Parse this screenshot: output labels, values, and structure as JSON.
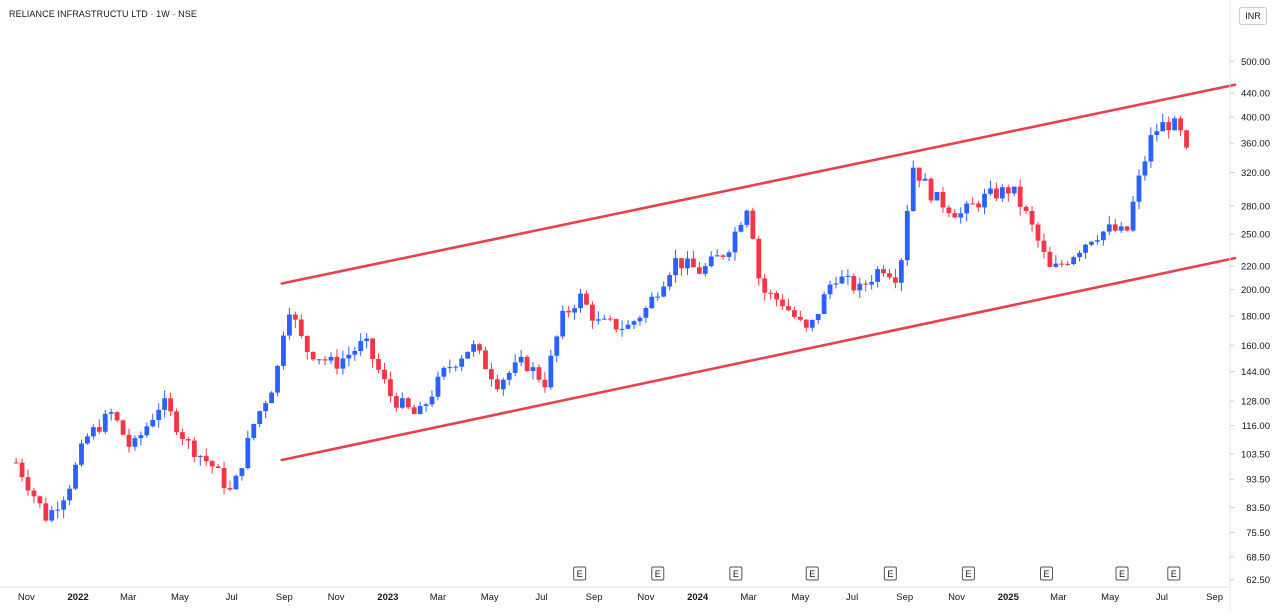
{
  "title": "RELIANCE INFRASTRUCTU LTD · 1W · NSE",
  "currency": "INR",
  "colors": {
    "up": "#2962ff",
    "down": "#f23645",
    "channel": "#e8414e"
  },
  "chart_data": {
    "type": "candlestick",
    "y_scale": "log",
    "ylim": [
      59,
      560
    ],
    "y_ticks": [
      "500.00",
      "440.00",
      "400.00",
      "360.00",
      "320.00",
      "280.00",
      "250.00",
      "220.00",
      "200.00",
      "180.00",
      "160.00",
      "144.00",
      "128.00",
      "116.00",
      "103.50",
      "93.50",
      "83.50",
      "75.50",
      "68.50",
      "62.50"
    ],
    "x_ticks": [
      "Nov",
      "2022",
      "Mar",
      "May",
      "Jul",
      "Sep",
      "Nov",
      "2023",
      "Mar",
      "May",
      "Jul",
      "Sep",
      "Nov",
      "2024",
      "Mar",
      "May",
      "Jul",
      "Sep",
      "Nov",
      "2025",
      "Mar",
      "May",
      "Jul",
      "Sep"
    ],
    "x_year_ticks": [
      "2022",
      "2023",
      "2024",
      "2025"
    ],
    "earnings_label": "E",
    "earnings_dates": [
      "2023-08",
      "2023-11",
      "2024-02",
      "2024-05",
      "2024-08",
      "2024-11",
      "2025-02",
      "2025-05",
      "2025-07"
    ],
    "channel": {
      "upper": {
        "from": [
          "2022-08-29",
          205
        ],
        "to": [
          "2025-09-25",
          455
        ]
      },
      "lower": {
        "from": [
          "2022-08-29",
          101
        ],
        "to": [
          "2025-09-25",
          227
        ]
      }
    },
    "anchors": [
      [
        "2021-10-20",
        100
      ],
      [
        "2021-11-25",
        80
      ],
      [
        "2021-12-20",
        90
      ],
      [
        "2022-01-10",
        110
      ],
      [
        "2022-02-10",
        122
      ],
      [
        "2022-03-05",
        105
      ],
      [
        "2022-04-10",
        128
      ],
      [
        "2022-05-10",
        108
      ],
      [
        "2022-06-10",
        98
      ],
      [
        "2022-07-01",
        88
      ],
      [
        "2022-07-28",
        118
      ],
      [
        "2022-08-22",
        140
      ],
      [
        "2022-09-05",
        190
      ],
      [
        "2022-09-25",
        158
      ],
      [
        "2022-10-30",
        148
      ],
      [
        "2022-12-05",
        162
      ],
      [
        "2023-01-05",
        130
      ],
      [
        "2023-02-05",
        120
      ],
      [
        "2023-03-10",
        145
      ],
      [
        "2023-04-10",
        160
      ],
      [
        "2023-05-10",
        138
      ],
      [
        "2023-06-10",
        150
      ],
      [
        "2023-07-05",
        138
      ],
      [
        "2023-07-25",
        178
      ],
      [
        "2023-08-15",
        195
      ],
      [
        "2023-09-05",
        175
      ],
      [
        "2023-10-10",
        172
      ],
      [
        "2023-11-01",
        185
      ],
      [
        "2023-12-05",
        225
      ],
      [
        "2024-01-05",
        215
      ],
      [
        "2024-02-05",
        235
      ],
      [
        "2024-03-01",
        285
      ],
      [
        "2024-03-15",
        200
      ],
      [
        "2024-04-10",
        190
      ],
      [
        "2024-05-10",
        168
      ],
      [
        "2024-06-10",
        212
      ],
      [
        "2024-07-10",
        200
      ],
      [
        "2024-08-05",
        220
      ],
      [
        "2024-08-25",
        210
      ],
      [
        "2024-09-10",
        330
      ],
      [
        "2024-10-05",
        290
      ],
      [
        "2024-11-05",
        270
      ],
      [
        "2024-12-05",
        290
      ],
      [
        "2025-01-05",
        300
      ],
      [
        "2025-01-25",
        265
      ],
      [
        "2025-02-20",
        215
      ],
      [
        "2025-03-10",
        225
      ],
      [
        "2025-04-10",
        248
      ],
      [
        "2025-05-01",
        255
      ],
      [
        "2025-05-20",
        250
      ],
      [
        "2025-06-01",
        300
      ],
      [
        "2025-06-20",
        375
      ],
      [
        "2025-07-05",
        390
      ],
      [
        "2025-07-20",
        385
      ],
      [
        "2025-07-30",
        345
      ]
    ]
  }
}
